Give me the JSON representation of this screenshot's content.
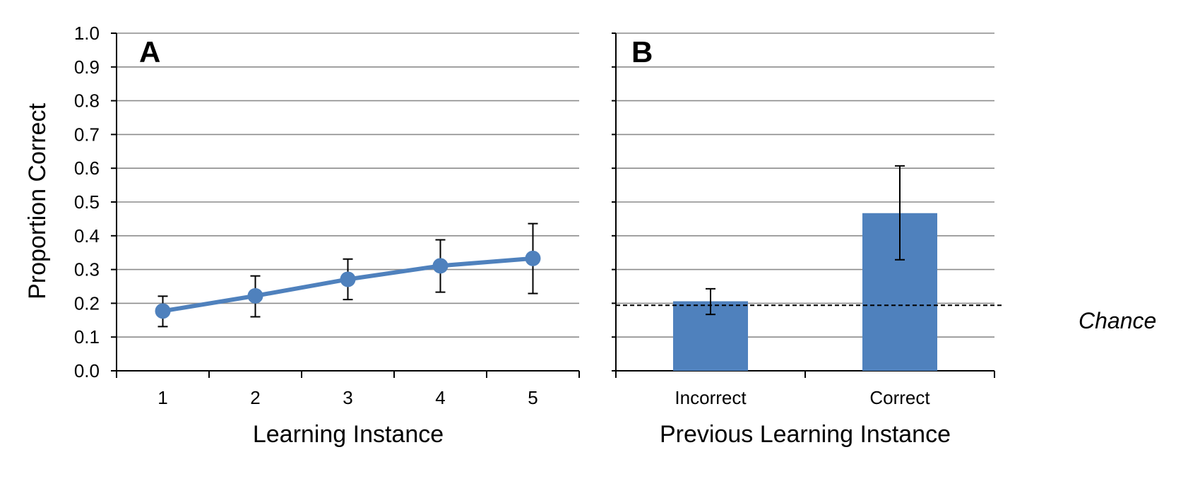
{
  "chart_data": [
    {
      "type": "line",
      "panel_label": "A",
      "title": "",
      "xlabel": "Learning Instance",
      "ylabel": "Proportion Correct",
      "x": [
        1,
        2,
        3,
        4,
        5
      ],
      "ylim": [
        0,
        1.0
      ],
      "yticks": [
        "0.0",
        "0.1",
        "0.2",
        "0.3",
        "0.4",
        "0.5",
        "0.6",
        "0.7",
        "0.8",
        "0.9",
        "1.0"
      ],
      "grid": "horizontal",
      "color": "#4f81bd",
      "series": [
        {
          "values": [
            0.177,
            0.222,
            0.271,
            0.311,
            0.333
          ],
          "error_low": [
            0.131,
            0.16,
            0.211,
            0.233,
            0.229
          ],
          "error_high": [
            0.221,
            0.281,
            0.331,
            0.388,
            0.436
          ]
        }
      ]
    },
    {
      "type": "bar",
      "panel_label": "B",
      "title": "",
      "xlabel": "Previous Learning Instance",
      "ylabel": "",
      "categories": [
        "Incorrect",
        "Correct"
      ],
      "ylim": [
        0,
        1.0
      ],
      "grid": "horizontal",
      "color": "#4f81bd",
      "series": [
        {
          "values": [
            0.206,
            0.467
          ],
          "error_low": [
            0.167,
            0.329
          ],
          "error_high": [
            0.243,
            0.607
          ]
        }
      ],
      "reference_line": {
        "label": "Chance",
        "value": 0.194,
        "style": "dashed"
      }
    }
  ]
}
